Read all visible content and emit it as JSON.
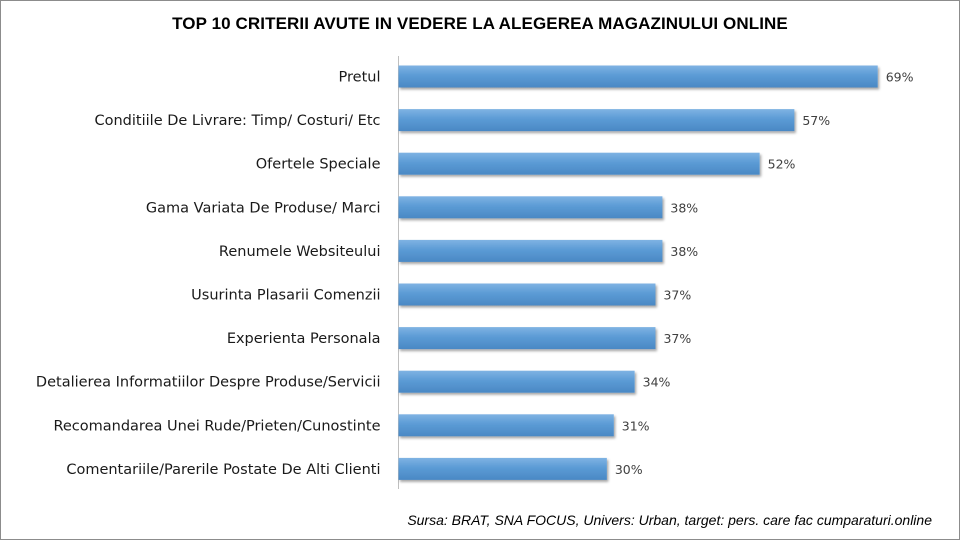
{
  "chart_data": {
    "type": "bar",
    "orientation": "horizontal",
    "title": "TOP 10 CRITERII AVUTE IN VEDERE LA ALEGEREA MAGAZINULUI ONLINE",
    "categories": [
      "Pretul",
      "Conditiile De Livrare: Timp/ Costuri/ Etc",
      "Ofertele Speciale",
      "Gama Variata De Produse/ Marci",
      "Renumele Websiteului",
      "Usurinta Plasarii Comenzii",
      "Experienta Personala",
      "Detalierea Informatiilor Despre Produse/Servicii",
      "Recomandarea Unei Rude/Prieten/Cunostinte",
      "Comentariile/Parerile Postate De Alti Clienti"
    ],
    "values": [
      69,
      57,
      52,
      38,
      38,
      37,
      37,
      34,
      31,
      30
    ],
    "value_labels": [
      "69%",
      "57%",
      "52%",
      "38%",
      "38%",
      "37%",
      "37%",
      "34%",
      "31%",
      "30%"
    ],
    "unit": "%",
    "xlim": [
      0,
      70
    ],
    "grid": false,
    "legend": "none",
    "bar_color": "#5b9bd5"
  },
  "source_note": "Sursa: BRAT, SNA FOCUS, Univers: Urban, target: pers. care fac cumparaturi.online"
}
